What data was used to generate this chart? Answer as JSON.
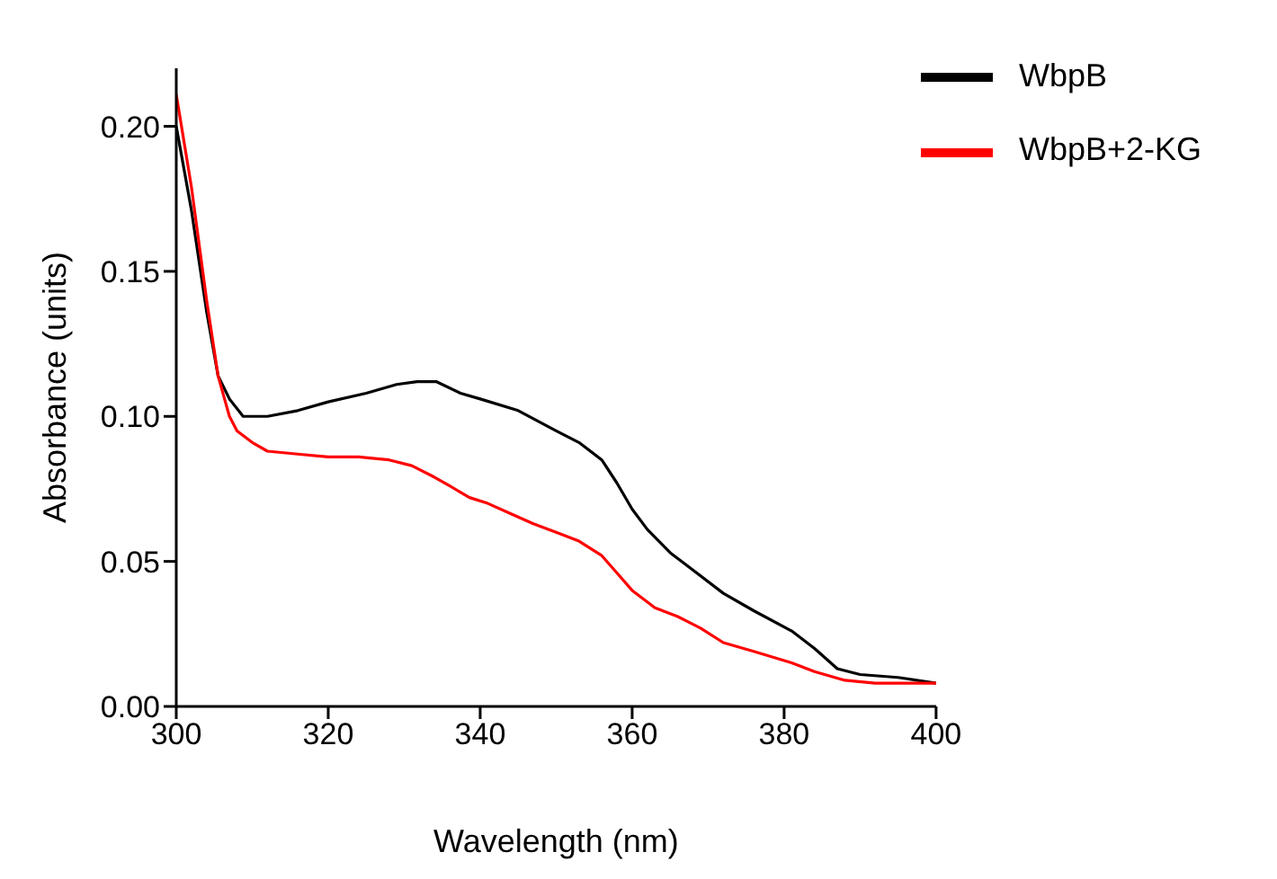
{
  "chart_data": {
    "type": "line",
    "xlabel": "Wavelength (nm)",
    "ylabel": "Absorbance (units)",
    "xlim": [
      300,
      400
    ],
    "xticks": [
      300,
      320,
      340,
      360,
      380,
      400
    ],
    "ylim": [
      0,
      0.22
    ],
    "yticks": [
      {
        "value": 0,
        "label": "0.00"
      },
      {
        "value": 0.05,
        "label": "0.05"
      },
      {
        "value": 0.1,
        "label": "0.10"
      },
      {
        "value": 0.15,
        "label": "0.15"
      },
      {
        "value": 0.2,
        "label": "0.20"
      }
    ],
    "grid": false,
    "legend": "top right",
    "marker": "none",
    "line_style": "solid",
    "series": [
      {
        "name": "WbpB",
        "color": "#000000",
        "x": [
          300,
          302,
          304,
          305.5,
          307,
          308.8,
          312,
          316,
          320,
          325,
          329,
          331.7,
          334.2,
          337.4,
          340,
          345,
          350,
          353,
          356,
          358,
          360,
          362,
          365,
          368,
          372,
          376,
          381,
          384,
          387,
          390,
          395,
          400
        ],
        "values": [
          0.2,
          0.171,
          0.136,
          0.114,
          0.106,
          0.1,
          0.1,
          0.102,
          0.105,
          0.108,
          0.111,
          0.112,
          0.112,
          0.108,
          0.106,
          0.102,
          0.095,
          0.091,
          0.085,
          0.077,
          0.068,
          0.061,
          0.053,
          0.047,
          0.039,
          0.033,
          0.026,
          0.02,
          0.013,
          0.011,
          0.01,
          0.008
        ]
      },
      {
        "name": "WbpB+2-KG",
        "color": "#ff0000",
        "x": [
          300,
          302,
          304,
          305.5,
          307,
          308,
          310,
          312,
          316,
          320,
          324,
          328,
          331,
          334,
          336,
          338.6,
          341,
          344.4,
          347,
          350,
          353,
          356,
          358,
          360,
          363,
          366,
          369,
          372,
          376,
          381,
          384,
          388,
          392,
          396,
          400
        ],
        "values": [
          0.211,
          0.179,
          0.14,
          0.114,
          0.1,
          0.095,
          0.091,
          0.088,
          0.087,
          0.086,
          0.086,
          0.085,
          0.083,
          0.079,
          0.076,
          0.072,
          0.07,
          0.066,
          0.063,
          0.06,
          0.057,
          0.052,
          0.046,
          0.04,
          0.034,
          0.031,
          0.027,
          0.022,
          0.019,
          0.015,
          0.012,
          0.009,
          0.008,
          0.008,
          0.008
        ]
      }
    ]
  }
}
